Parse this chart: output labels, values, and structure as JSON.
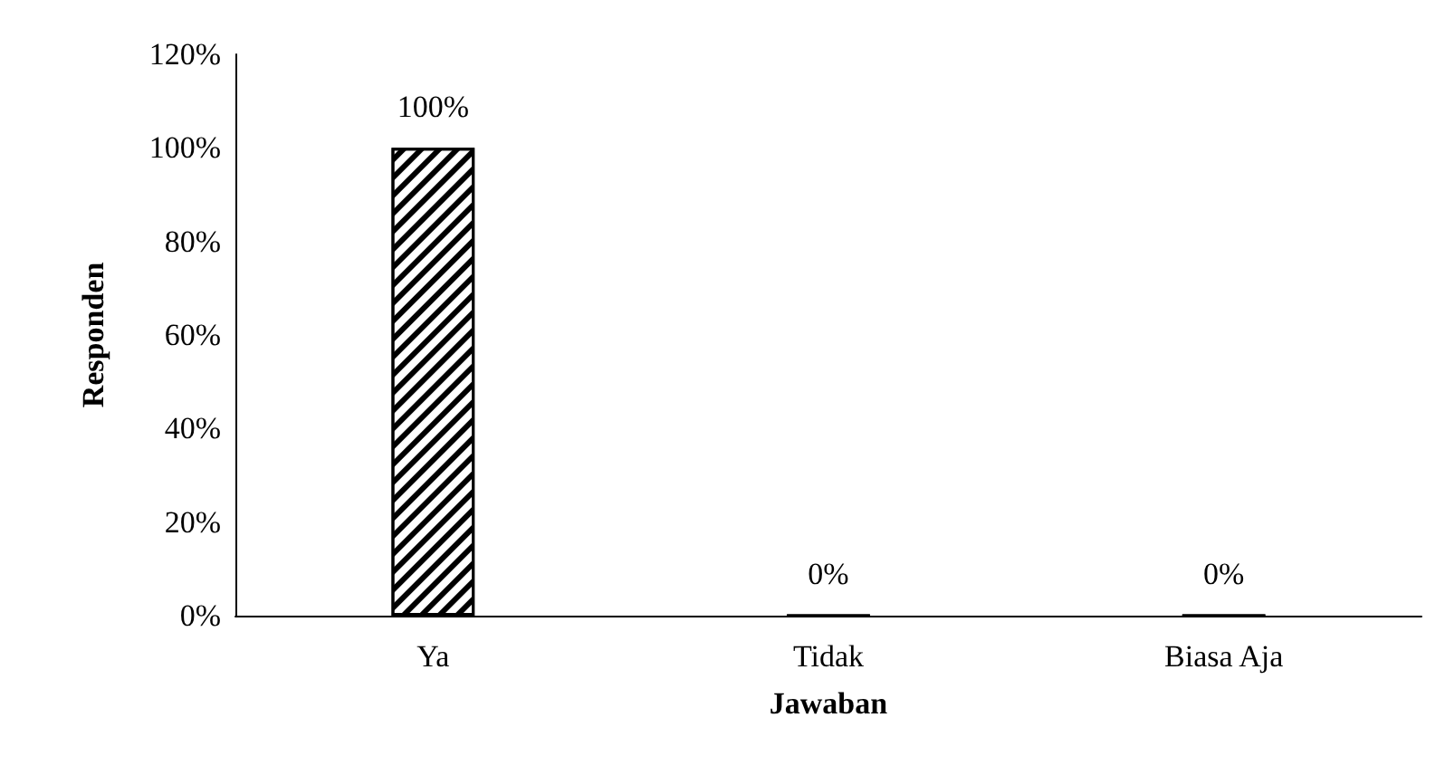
{
  "chart_data": {
    "type": "bar",
    "xlabel": "Jawaban",
    "ylabel": "Responden",
    "categories": [
      "Ya",
      "Tidak",
      "Biasa Aja"
    ],
    "values": [
      100,
      0,
      0
    ],
    "value_labels": [
      "100%",
      "0%",
      "0%"
    ],
    "color": "#000000",
    "ylim": [
      0,
      120
    ],
    "yticks": [
      {
        "value": 0,
        "label": "0%"
      },
      {
        "value": 20,
        "label": "20%"
      },
      {
        "value": 40,
        "label": "40%"
      },
      {
        "value": 60,
        "label": "60%"
      },
      {
        "value": 80,
        "label": "80%"
      },
      {
        "value": 100,
        "label": "100%"
      },
      {
        "value": 120,
        "label": "120%"
      }
    ],
    "grid": false
  }
}
